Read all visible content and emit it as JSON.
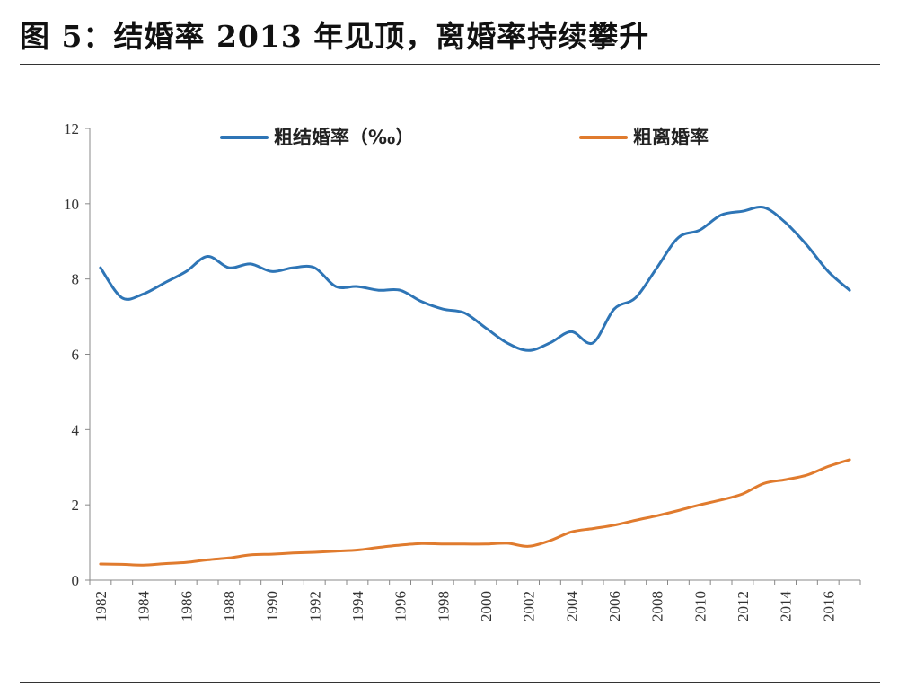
{
  "figure": {
    "title": "图  5：结婚率 2013 年见顶，离婚率持续攀升"
  },
  "colors": {
    "marriage": "#2e75b6",
    "divorce": "#e07b2e",
    "axis": "#888888"
  },
  "chart_data": {
    "type": "line",
    "title": "",
    "xlabel": "",
    "ylabel": "",
    "xlim": [
      1982,
      2017
    ],
    "ylim": [
      0,
      12
    ],
    "yticks": [
      0,
      2,
      4,
      6,
      8,
      10,
      12
    ],
    "xticks": [
      "1982",
      "1984",
      "1986",
      "1988",
      "1990",
      "1992",
      "1994",
      "1996",
      "1998",
      "2000",
      "2002",
      "2004",
      "2006",
      "2008",
      "2010",
      "2012",
      "2014",
      "2016"
    ],
    "grid": false,
    "legend_position": "top",
    "x": [
      1982,
      1983,
      1984,
      1985,
      1986,
      1987,
      1988,
      1989,
      1990,
      1991,
      1992,
      1993,
      1994,
      1995,
      1996,
      1997,
      1998,
      1999,
      2000,
      2001,
      2002,
      2003,
      2004,
      2005,
      2006,
      2007,
      2008,
      2009,
      2010,
      2011,
      2012,
      2013,
      2014,
      2015,
      2016,
      2017
    ],
    "series": [
      {
        "name": "粗结婚率（‰）",
        "color": "#2e75b6",
        "values": [
          8.3,
          7.5,
          7.6,
          7.9,
          8.2,
          8.6,
          8.3,
          8.4,
          8.2,
          8.3,
          8.3,
          7.8,
          7.8,
          7.7,
          7.7,
          7.4,
          7.2,
          7.1,
          6.7,
          6.3,
          6.1,
          6.3,
          6.6,
          6.3,
          7.2,
          7.5,
          8.3,
          9.1,
          9.3,
          9.7,
          9.8,
          9.9,
          9.5,
          8.9,
          8.2,
          7.7
        ]
      },
      {
        "name": "粗离婚率",
        "color": "#e07b2e",
        "values": [
          0.43,
          0.42,
          0.4,
          0.44,
          0.47,
          0.54,
          0.59,
          0.67,
          0.69,
          0.72,
          0.74,
          0.77,
          0.8,
          0.87,
          0.93,
          0.97,
          0.96,
          0.96,
          0.96,
          0.98,
          0.9,
          1.05,
          1.28,
          1.37,
          1.46,
          1.59,
          1.71,
          1.85,
          2.0,
          2.13,
          2.29,
          2.57,
          2.67,
          2.79,
          3.02,
          3.2
        ]
      }
    ]
  }
}
